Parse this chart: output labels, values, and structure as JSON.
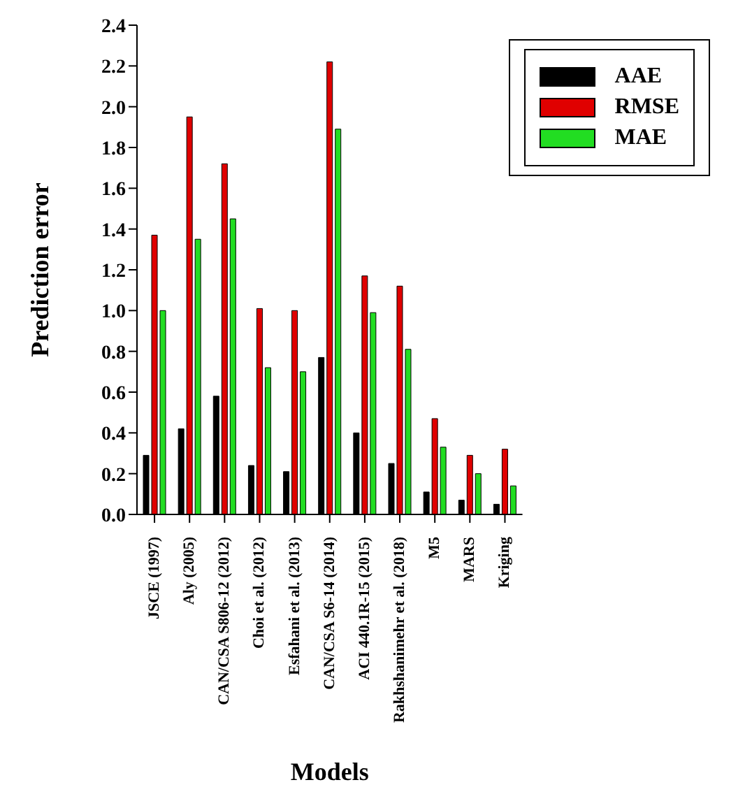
{
  "chart_data": {
    "type": "bar",
    "xlabel": "Models",
    "ylabel": "Prediction error",
    "categories": [
      "JSCE (1997)",
      "Aly (2005)",
      "CAN/CSA S806-12 (2012)",
      "Choi et al. (2012)",
      "Esfahani et al. (2013)",
      "CAN/CSA S6-14 (2014)",
      "ACI 440.1R-15 (2015)",
      "Rakhshanimehr et al. (2018)",
      "M5",
      "MARS",
      "Kriging"
    ],
    "series": [
      {
        "name": "AAE",
        "color": "#000000",
        "values": [
          0.29,
          0.42,
          0.58,
          0.24,
          0.21,
          0.77,
          0.4,
          0.25,
          0.11,
          0.07,
          0.05
        ]
      },
      {
        "name": "RMSE",
        "color": "#e00000",
        "values": [
          1.37,
          1.95,
          1.72,
          1.01,
          1.0,
          2.22,
          1.17,
          1.12,
          0.47,
          0.29,
          0.32
        ]
      },
      {
        "name": "MAE",
        "color": "#22dd22",
        "values": [
          1.0,
          1.35,
          1.45,
          0.72,
          0.7,
          1.89,
          0.99,
          0.81,
          0.33,
          0.2,
          0.14
        ]
      }
    ],
    "ylim": [
      0,
      2.4
    ],
    "yticks": [
      {
        "value": 0,
        "label": "0.0"
      },
      {
        "value": 0.2,
        "label": "0.2"
      },
      {
        "value": 0.4,
        "label": "0.4"
      },
      {
        "value": 0.6,
        "label": "0.6"
      },
      {
        "value": 0.8,
        "label": "0.8"
      },
      {
        "value": 1,
        "label": "1.0"
      },
      {
        "value": 1.2,
        "label": "1.2"
      },
      {
        "value": 1.4,
        "label": "1.4"
      },
      {
        "value": 1.6,
        "label": "1.6"
      },
      {
        "value": 1.8,
        "label": "1.8"
      },
      {
        "value": 2,
        "label": "2.0"
      },
      {
        "value": 2.2,
        "label": "2.2"
      },
      {
        "value": 2.4,
        "label": "2.4"
      }
    ],
    "legend": "top right",
    "grid": false
  }
}
